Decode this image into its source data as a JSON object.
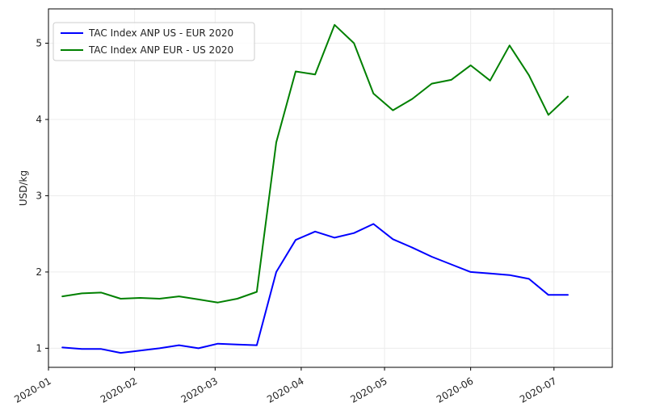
{
  "chart_data": {
    "type": "line",
    "title": "",
    "xlabel": "",
    "ylabel": "USD/kg",
    "xlim": [
      "2020-01-01",
      "2020-07-22"
    ],
    "ylim": [
      0.75,
      5.45
    ],
    "grid": true,
    "legend_position": "top-left",
    "x_ticks": [
      "2020-01-01",
      "2020-02-01",
      "2020-03-01",
      "2020-04-01",
      "2020-05-01",
      "2020-06-01",
      "2020-07-01"
    ],
    "x_tick_labels": [
      "2020-01",
      "2020-02",
      "2020-03",
      "2020-04",
      "2020-05",
      "2020-06",
      "2020-07"
    ],
    "y_ticks": [
      1,
      2,
      3,
      4,
      5
    ],
    "y_tick_labels": [
      "1",
      "2",
      "3",
      "4",
      "5"
    ],
    "x": [
      "2020-01-06",
      "2020-01-13",
      "2020-01-20",
      "2020-01-27",
      "2020-02-03",
      "2020-02-10",
      "2020-02-17",
      "2020-02-24",
      "2020-03-02",
      "2020-03-09",
      "2020-03-16",
      "2020-03-23",
      "2020-03-30",
      "2020-04-06",
      "2020-04-13",
      "2020-04-20",
      "2020-04-27",
      "2020-05-04",
      "2020-05-11",
      "2020-05-18",
      "2020-05-25",
      "2020-06-01",
      "2020-06-08",
      "2020-06-15",
      "2020-06-22",
      "2020-06-29",
      "2020-07-06"
    ],
    "series": [
      {
        "name": "TAC Index ANP US - EUR 2020",
        "color": "#0000ff",
        "values": [
          1.01,
          0.99,
          0.99,
          0.94,
          0.97,
          1.0,
          1.04,
          1.0,
          1.06,
          1.05,
          1.04,
          2.0,
          2.42,
          2.53,
          2.45,
          2.51,
          2.63,
          2.43,
          2.32,
          2.2,
          2.1,
          2.0,
          1.98,
          1.96,
          1.91,
          1.7,
          1.7
        ]
      },
      {
        "name": "TAC Index ANP EUR - US 2020",
        "color": "#008000",
        "values": [
          1.68,
          1.72,
          1.73,
          1.65,
          1.66,
          1.65,
          1.68,
          1.64,
          1.6,
          1.65,
          1.74,
          3.7,
          4.63,
          4.59,
          5.24,
          5.0,
          4.34,
          4.12,
          4.27,
          4.47,
          4.52,
          4.71,
          4.51,
          4.97,
          4.58,
          4.06,
          4.3
        ]
      }
    ]
  }
}
